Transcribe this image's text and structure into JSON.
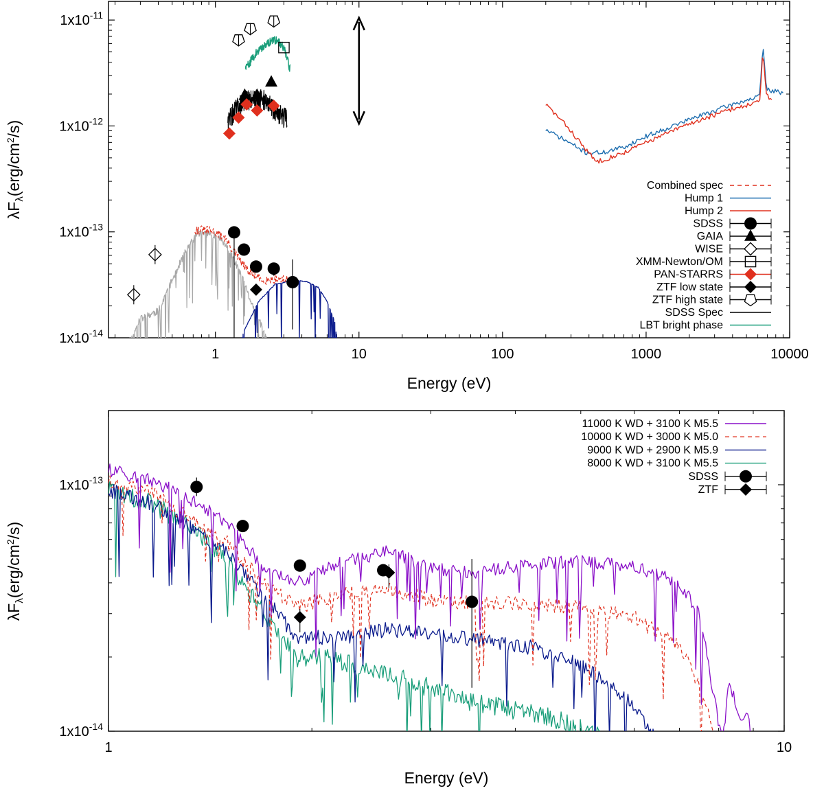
{
  "colors": {
    "combined": "#e0301e",
    "hump1": "#1f6fb0",
    "hump2": "#e0301e",
    "sdss_spec": "#000000",
    "lbt": "#1a9e7a",
    "panstarrs": "#e0301e",
    "template_m": "#a8a8a8",
    "wd_top": "#0a1a8c",
    "wd11000": "#8a10c8",
    "wd10000": "#e0301e",
    "wd9000": "#0a1a8c",
    "wd8000": "#1a9e7a"
  },
  "chart_data": [
    {
      "type": "scatter",
      "xscale": "log",
      "yscale": "log",
      "xlabel": "Energy (eV)",
      "ylabel": "λF_λ(erg/cm²/s)",
      "xlim": [
        0.18,
        10000
      ],
      "ylim": [
        1e-14,
        1.5e-11
      ],
      "xticks": [
        {
          "value": 1,
          "label": "1"
        },
        {
          "value": 10,
          "label": "10"
        },
        {
          "value": 100,
          "label": "100"
        },
        {
          "value": 1000,
          "label": "1000"
        },
        {
          "value": 10000,
          "label": "10000"
        }
      ],
      "yticks": [
        {
          "value": 1e-14,
          "label": "1x10",
          "exp": "-14"
        },
        {
          "value": 1e-13,
          "label": "1x10",
          "exp": "-13"
        },
        {
          "value": 1e-12,
          "label": "1x10",
          "exp": "-12"
        },
        {
          "value": 1e-11,
          "label": "1x10",
          "exp": "-11"
        }
      ],
      "legend_position": "bottom-right",
      "legend": [
        {
          "label": "Combined spec",
          "style": "dashed",
          "color": "#e0301e"
        },
        {
          "label": "Hump 1",
          "style": "line",
          "color": "#1f6fb0"
        },
        {
          "label": "Hump 2",
          "style": "line",
          "color": "#e0301e"
        },
        {
          "label": "SDSS",
          "style": "circle",
          "color": "#000000"
        },
        {
          "label": "GAIA",
          "style": "triangle",
          "color": "#000000"
        },
        {
          "label": "WISE",
          "style": "diamond-open",
          "color": "#000000"
        },
        {
          "label": "XMM-Newton/OM",
          "style": "square-open",
          "color": "#000000"
        },
        {
          "label": "PAN-STARRS",
          "style": "diamond",
          "color": "#e0301e"
        },
        {
          "label": "ZTF low state",
          "style": "diamond",
          "color": "#000000"
        },
        {
          "label": "ZTF high state",
          "style": "pentagon-open",
          "color": "#000000"
        },
        {
          "label": "SDSS Spec",
          "style": "line",
          "color": "#000000"
        },
        {
          "label": "LBT bright phase",
          "style": "line",
          "color": "#1a9e7a"
        }
      ],
      "series": [
        {
          "name": "SDSS",
          "x": [
            1.35,
            1.58,
            1.92,
            2.55,
            3.45
          ],
          "y": [
            9.9e-14,
            6.8e-14,
            4.7e-14,
            4.5e-14,
            3.35e-14
          ],
          "yerr": [
            [
              1e-14,
              1.1e-13
            ],
            null,
            null,
            null,
            [
              1.2e-14,
              5.5e-14
            ]
          ]
        },
        {
          "name": "GAIA",
          "x": [
            1.6,
            1.95,
            2.45
          ],
          "y": [
            1.95e-12,
            1.95e-12,
            2.6e-12
          ]
        },
        {
          "name": "WISE",
          "x": [
            0.27,
            0.38
          ],
          "y": [
            2.55e-14,
            6.1e-14
          ]
        },
        {
          "name": "XMM-Newton/OM",
          "x": [
            3.0
          ],
          "y": [
            5.5e-12
          ]
        },
        {
          "name": "PAN-STARRS",
          "x": [
            1.25,
            1.45,
            1.65,
            1.95,
            2.55
          ],
          "y": [
            8.5e-13,
            1.2e-12,
            1.6e-12,
            1.4e-12,
            1.55e-12
          ]
        },
        {
          "name": "ZTF low state",
          "x": [
            2.55,
            1.92
          ],
          "y": [
            4.4e-14,
            2.85e-14
          ]
        },
        {
          "name": "ZTF high state",
          "x": [
            1.45,
            1.75,
            2.55
          ],
          "y": [
            6.5e-12,
            8.3e-12,
            9.8e-12
          ]
        }
      ],
      "arrow": {
        "x": 10,
        "y_from": 1.05e-12,
        "y_to": 1.05e-11,
        "style": "double-headed"
      }
    },
    {
      "type": "line",
      "xscale": "log",
      "yscale": "log",
      "xlabel": "Energy (eV)",
      "ylabel": "λF_λ(erg/cm²/s)",
      "xlim": [
        1,
        10
      ],
      "ylim": [
        1e-14,
        2e-13
      ],
      "xticks": [
        {
          "value": 1,
          "label": "1"
        },
        {
          "value": 10,
          "label": "10"
        }
      ],
      "yticks": [
        {
          "value": 1e-14,
          "label": "1x10",
          "exp": "-14"
        },
        {
          "value": 1e-13,
          "label": "1x10",
          "exp": "-13"
        }
      ],
      "legend_position": "top-right",
      "legend": [
        {
          "label": "11000 K WD + 3100 K M5.5",
          "style": "line",
          "color": "#8a10c8"
        },
        {
          "label": "10000 K WD + 3000 K M5.0",
          "style": "dashed",
          "color": "#e0301e"
        },
        {
          "label": "9000 K WD + 2900 K M5.9",
          "style": "line",
          "color": "#0a1a8c"
        },
        {
          "label": "8000 K WD + 3100 K M5.5",
          "style": "line",
          "color": "#1a9e7a"
        },
        {
          "label": "SDSS",
          "style": "circle",
          "color": "#000000"
        },
        {
          "label": "ZTF",
          "style": "diamond",
          "color": "#000000"
        }
      ],
      "series": [
        {
          "name": "SDSS",
          "x": [
            1.35,
            1.58,
            1.92,
            2.55,
            3.45
          ],
          "y": [
            9.8e-14,
            6.8e-14,
            4.7e-14,
            4.5e-14,
            3.35e-14
          ],
          "yerr": [
            [
              9e-14,
              1.07e-13
            ],
            null,
            null,
            null,
            [
              1.5e-14,
              5e-14
            ]
          ]
        },
        {
          "name": "ZTF",
          "x": [
            2.6,
            1.92
          ],
          "y": [
            4.4e-14,
            2.9e-14
          ]
        }
      ]
    }
  ]
}
